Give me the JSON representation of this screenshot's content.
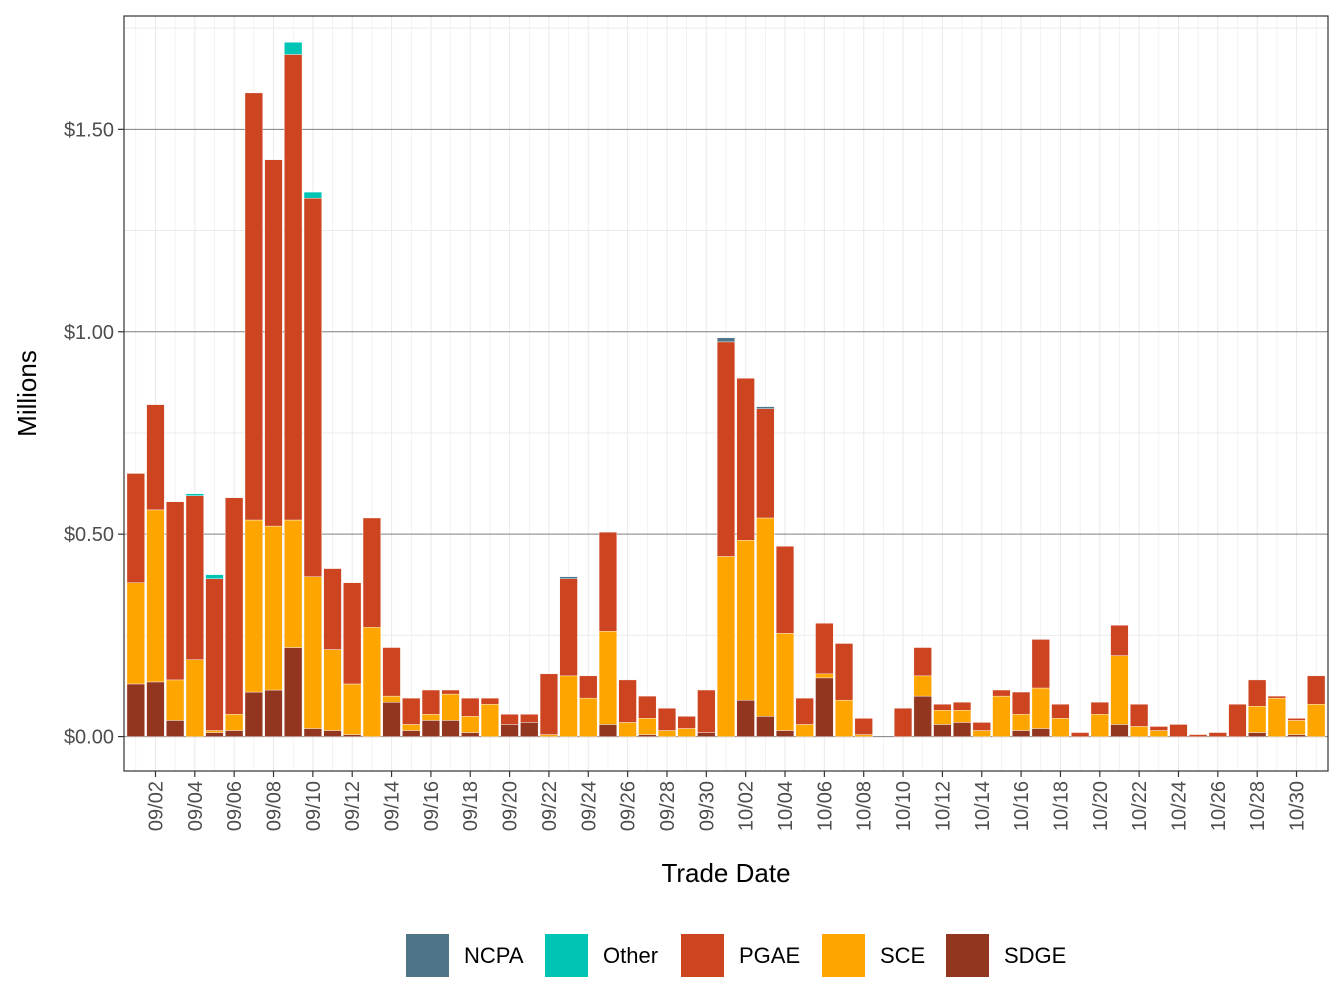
{
  "chart_data": {
    "type": "bar",
    "stacked": true,
    "xlabel": "Trade Date",
    "ylabel": "Millions",
    "ylim": [
      -0.085,
      1.78
    ],
    "y_ticks": [
      0,
      0.5,
      1.0,
      1.5
    ],
    "y_tick_labels": [
      "$0.00",
      "$0.50",
      "$1.00",
      "$1.50"
    ],
    "x_tick_labels": [
      "09/02",
      "09/04",
      "09/06",
      "09/08",
      "09/10",
      "09/12",
      "09/14",
      "09/16",
      "09/18",
      "09/20",
      "09/22",
      "09/24",
      "09/26",
      "09/28",
      "09/30",
      "10/02",
      "10/04",
      "10/06",
      "10/08",
      "10/10",
      "10/12",
      "10/14",
      "10/16",
      "10/18",
      "10/20",
      "10/22",
      "10/24",
      "10/26",
      "10/28",
      "10/30"
    ],
    "grid": true,
    "legend_position": "bottom",
    "categories": [
      "09/01",
      "09/02",
      "09/03",
      "09/04",
      "09/05",
      "09/06",
      "09/07",
      "09/08",
      "09/09",
      "09/10",
      "09/11",
      "09/12",
      "09/13",
      "09/14",
      "09/15",
      "09/16",
      "09/17",
      "09/18",
      "09/19",
      "09/20",
      "09/21",
      "09/22",
      "09/23",
      "09/24",
      "09/25",
      "09/26",
      "09/27",
      "09/28",
      "09/29",
      "09/30",
      "10/01",
      "10/02",
      "10/03",
      "10/04",
      "10/05",
      "10/06",
      "10/07",
      "10/08",
      "10/09",
      "10/10",
      "10/11",
      "10/12",
      "10/13",
      "10/14",
      "10/15",
      "10/16",
      "10/17",
      "10/18",
      "10/19",
      "10/20",
      "10/21",
      "10/22",
      "10/23",
      "10/24",
      "10/25",
      "10/26",
      "10/27",
      "10/28",
      "10/29",
      "10/30",
      "10/31"
    ],
    "series": [
      {
        "name": "SDGE",
        "color": "#93361f",
        "values": [
          0.13,
          0.135,
          0.04,
          0.0,
          0.01,
          0.015,
          0.11,
          0.115,
          0.22,
          0.02,
          0.015,
          0.005,
          0.0,
          0.085,
          0.015,
          0.04,
          0.04,
          0.01,
          0.0,
          0.03,
          0.035,
          0.0,
          0.0,
          0.0,
          0.03,
          0.0,
          0.005,
          0.0,
          0.0,
          0.01,
          0.0,
          0.09,
          0.05,
          0.015,
          0.0,
          0.145,
          0.0,
          0.0,
          0.0,
          0.0,
          0.1,
          0.03,
          0.035,
          0.0,
          0.0,
          0.015,
          0.02,
          0.0,
          0.0,
          0.0,
          0.03,
          0.0,
          0.0,
          0.0,
          0.0,
          0.0,
          0.0,
          0.01,
          0.0,
          0.005,
          0.0
        ]
      },
      {
        "name": "SCE",
        "color": "#ffa500",
        "values": [
          0.25,
          0.425,
          0.1,
          0.19,
          0.005,
          0.04,
          0.425,
          0.405,
          0.315,
          0.375,
          0.2,
          0.125,
          0.27,
          0.015,
          0.015,
          0.015,
          0.065,
          0.04,
          0.08,
          0.0,
          0.0,
          0.005,
          0.15,
          0.095,
          0.23,
          0.035,
          0.04,
          0.015,
          0.02,
          0.0,
          0.445,
          0.395,
          0.49,
          0.24,
          0.03,
          0.01,
          0.09,
          0.005,
          0.0,
          0.0,
          0.05,
          0.035,
          0.03,
          0.015,
          0.1,
          0.04,
          0.1,
          0.045,
          0.0,
          0.055,
          0.17,
          0.025,
          0.015,
          0.0,
          0.0,
          0.0,
          0.0,
          0.065,
          0.095,
          0.035,
          0.08
        ]
      },
      {
        "name": "PGAE",
        "color": "#cd4420",
        "values": [
          0.27,
          0.26,
          0.44,
          0.405,
          0.375,
          0.535,
          1.055,
          0.905,
          1.15,
          0.935,
          0.2,
          0.25,
          0.27,
          0.12,
          0.065,
          0.06,
          0.01,
          0.045,
          0.015,
          0.025,
          0.02,
          0.15,
          0.24,
          0.055,
          0.245,
          0.105,
          0.055,
          0.055,
          0.03,
          0.105,
          0.53,
          0.4,
          0.27,
          0.215,
          0.065,
          0.125,
          0.14,
          0.04,
          0.0,
          0.07,
          0.07,
          0.015,
          0.02,
          0.02,
          0.015,
          0.055,
          0.12,
          0.035,
          0.01,
          0.03,
          0.075,
          0.055,
          0.01,
          0.03,
          0.005,
          0.01,
          0.08,
          0.065,
          0.005,
          0.005,
          0.07
        ]
      },
      {
        "name": "Other",
        "color": "#00c5b5",
        "values": [
          0,
          0,
          0,
          0.005,
          0.01,
          0,
          0,
          0,
          0.03,
          0.015,
          0,
          0,
          0,
          0,
          0,
          0,
          0,
          0,
          0,
          0,
          0,
          0,
          0,
          0,
          0,
          0,
          0,
          0,
          0,
          0,
          0,
          0,
          0,
          0,
          0,
          0,
          0,
          0,
          0,
          0,
          0,
          0,
          0,
          0,
          0,
          0,
          0,
          0,
          0,
          0,
          0,
          0,
          0,
          0,
          0,
          0,
          0,
          0,
          0,
          0,
          0
        ]
      },
      {
        "name": "NCPA",
        "color": "#4e7487",
        "values": [
          0,
          0,
          0,
          0,
          0,
          0,
          0,
          0,
          0,
          0,
          0,
          0,
          0,
          0,
          0,
          0,
          0,
          0,
          0,
          0,
          0,
          0,
          0.005,
          0,
          0,
          0,
          0,
          0,
          0,
          0,
          0.01,
          0,
          0.005,
          0,
          0,
          0,
          0,
          0,
          0,
          0,
          0,
          0,
          0,
          0,
          0,
          0,
          0,
          0,
          0,
          0,
          0,
          0,
          0,
          0,
          0,
          0,
          0,
          0,
          0,
          0,
          0
        ]
      }
    ],
    "legend_order": [
      "NCPA",
      "Other",
      "PGAE",
      "SCE",
      "SDGE"
    ]
  }
}
